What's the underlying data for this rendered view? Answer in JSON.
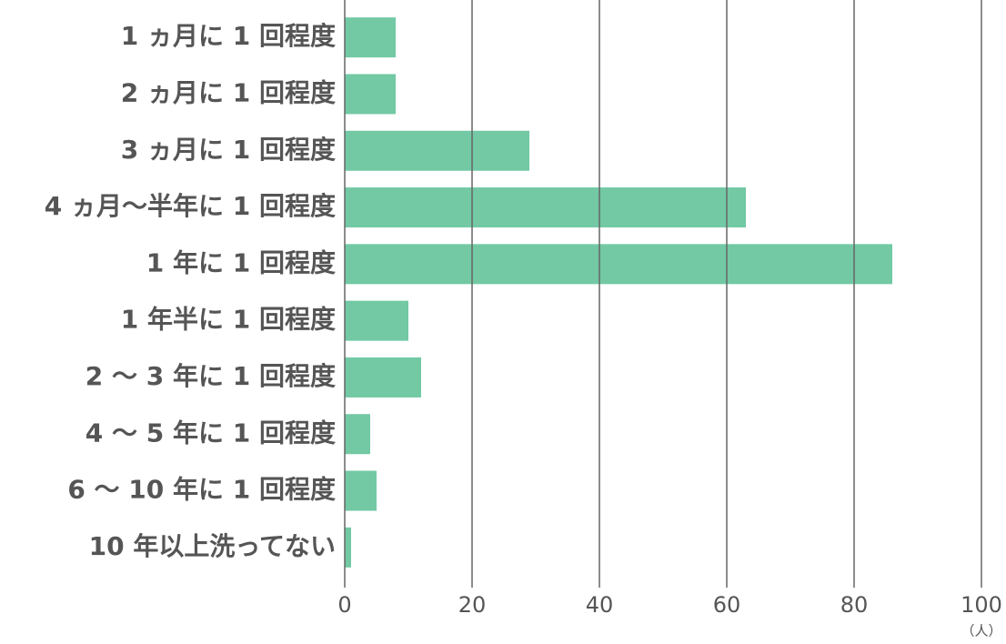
{
  "chart_data": {
    "type": "barh",
    "categories": [
      "1 ヵ月に 1 回程度",
      "2 ヵ月に 1 回程度",
      "3 ヵ月に 1 回程度",
      "4 ヵ月〜半年に 1 回程度",
      "1 年に 1 回程度",
      "1 年半に 1 回程度",
      "2 〜 3 年に 1 回程度",
      "4 〜 5 年に 1 回程度",
      "6 〜 10 年に 1 回程度",
      "10 年以上洗ってない"
    ],
    "values": [
      8,
      8,
      29,
      63,
      86,
      10,
      12,
      4,
      5,
      1
    ],
    "color": "#72c9a4",
    "xlim": [
      0,
      100
    ],
    "xticks": [
      0,
      20,
      40,
      60,
      80,
      100
    ],
    "x_label": "（人）",
    "grid": true
  }
}
